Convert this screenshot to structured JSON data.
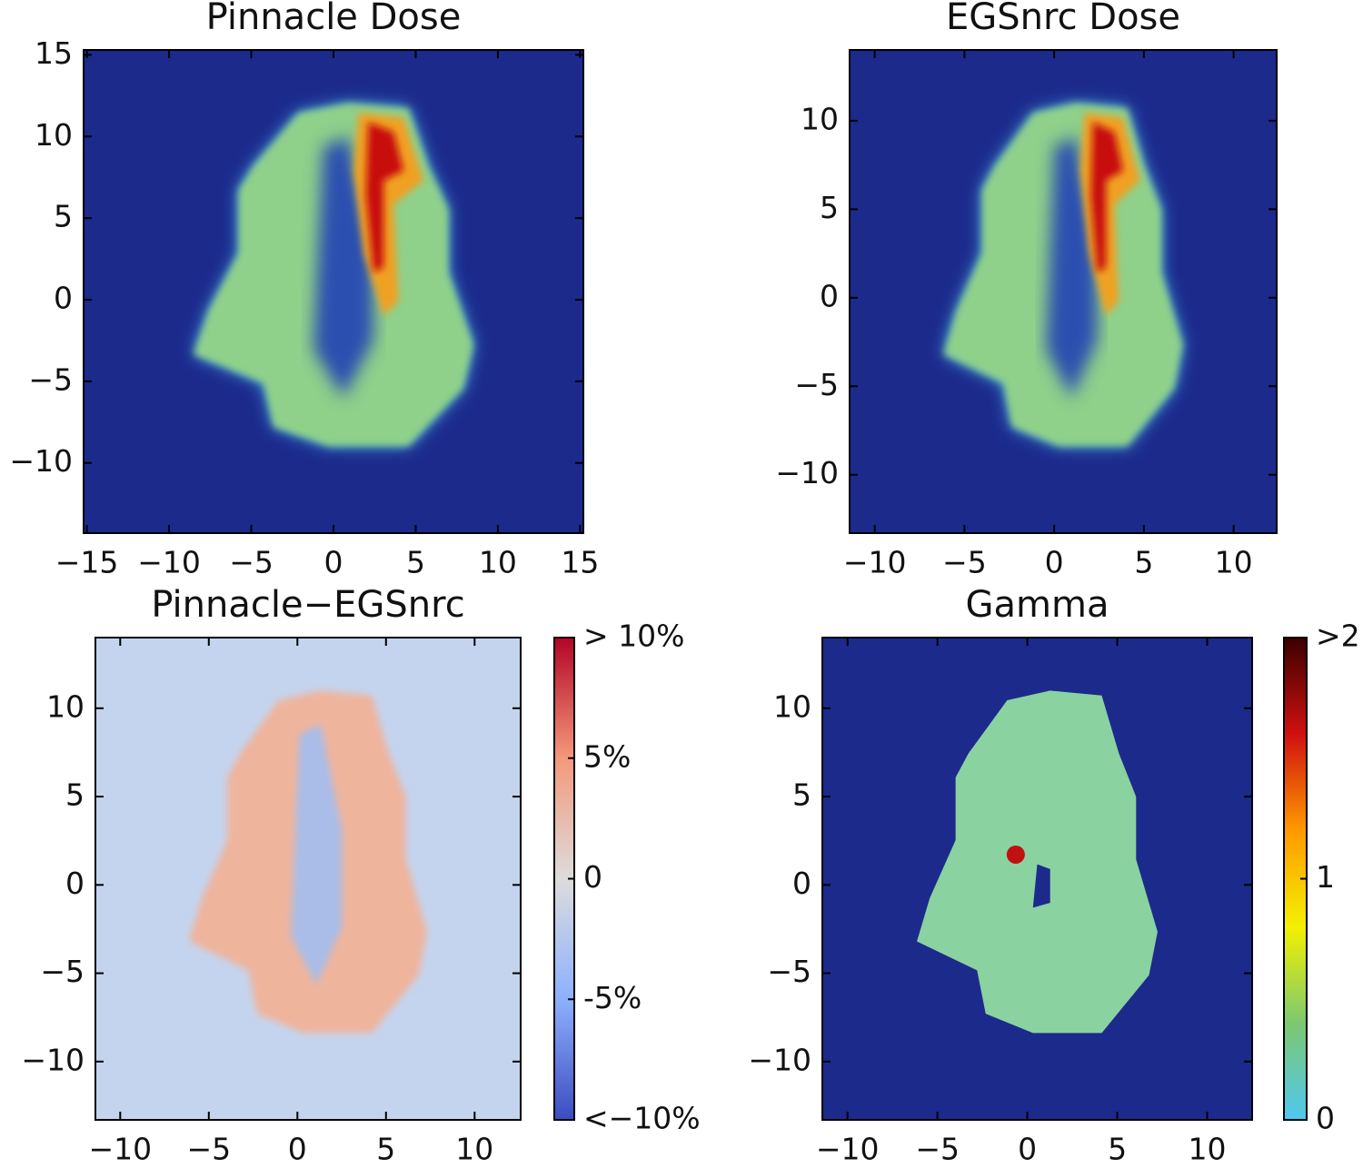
{
  "chart_data": [
    {
      "type": "heatmap",
      "title": "Pinnacle Dose",
      "xlim": [
        -15.2,
        15.2
      ],
      "ylim": [
        -14.3,
        15.3
      ],
      "xticks": [
        {
          "value": -15,
          "label": "−15"
        },
        {
          "value": -10,
          "label": "−10"
        },
        {
          "value": -5,
          "label": "−5"
        },
        0,
        5,
        10,
        15
      ],
      "yticks": [
        {
          "value": -10,
          "label": "−10"
        },
        {
          "value": -5,
          "label": "−5"
        },
        0,
        5,
        10,
        15
      ]
    },
    {
      "type": "heatmap",
      "title": "EGSnrc Dose",
      "xlim": [
        -11.4,
        12.4
      ],
      "ylim": [
        -13.3,
        14.0
      ],
      "xticks": [
        {
          "value": -10,
          "label": "−10"
        },
        {
          "value": -5,
          "label": "−5"
        },
        0,
        5,
        10
      ],
      "yticks": [
        {
          "value": -10,
          "label": "−10"
        },
        {
          "value": -5,
          "label": "−5"
        },
        0,
        5,
        10
      ]
    },
    {
      "type": "heatmap",
      "title": "Pinnacle−EGSnrc",
      "xlim": [
        -11.4,
        12.6
      ],
      "ylim": [
        -13.3,
        14.0
      ],
      "xticks": [
        {
          "value": -10,
          "label": "−10"
        },
        {
          "value": -5,
          "label": "−5"
        },
        0,
        5,
        10
      ],
      "yticks": [
        {
          "value": -10,
          "label": "−10"
        },
        {
          "value": -5,
          "label": "−5"
        },
        0,
        5,
        10
      ],
      "clim": [
        -10,
        10
      ],
      "cticks": [
        {
          "value": 10,
          "label": "> 10%"
        },
        {
          "value": 5,
          "label": "5%"
        },
        0,
        {
          "value": -5,
          "label": "-5%"
        },
        {
          "value": -10,
          "label": "<−10%"
        }
      ],
      "colormap": [
        "#b40426",
        "#f4987a",
        "#dddcdc",
        "#8db0fe",
        "#3b4cc0"
      ]
    },
    {
      "type": "heatmap",
      "title": "Gamma",
      "xlim": [
        -11.4,
        12.5
      ],
      "ylim": [
        -13.3,
        14.0
      ],
      "xticks": [
        {
          "value": -10,
          "label": "−10"
        },
        {
          "value": -5,
          "label": "−5"
        },
        0,
        5,
        10
      ],
      "yticks": [
        {
          "value": -10,
          "label": "−10"
        },
        {
          "value": -5,
          "label": "−5"
        },
        0,
        5,
        10
      ],
      "clim": [
        0,
        2
      ],
      "cticks": [
        0,
        1,
        {
          "value": 2,
          "label": ">2"
        }
      ],
      "colormap": [
        "#3a0000",
        "#d01010",
        "#ff9a00",
        "#f4f000",
        "#7cc870",
        "#4fc8f0"
      ]
    }
  ]
}
